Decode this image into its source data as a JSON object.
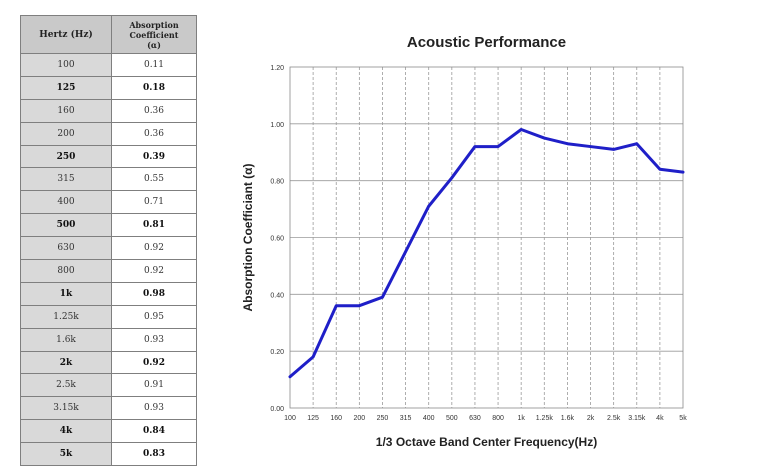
{
  "table": {
    "header_hz": "Hertz (Hz)",
    "header_ac_line1": "Absorption",
    "header_ac_line2": "Coefficient",
    "header_ac_line3": "(α)",
    "rows": [
      {
        "hz": "100",
        "ac": "0.11",
        "bold": false
      },
      {
        "hz": "125",
        "ac": "0.18",
        "bold": true
      },
      {
        "hz": "160",
        "ac": "0.36",
        "bold": false
      },
      {
        "hz": "200",
        "ac": "0.36",
        "bold": false
      },
      {
        "hz": "250",
        "ac": "0.39",
        "bold": true
      },
      {
        "hz": "315",
        "ac": "0.55",
        "bold": false
      },
      {
        "hz": "400",
        "ac": "0.71",
        "bold": false
      },
      {
        "hz": "500",
        "ac": "0.81",
        "bold": true
      },
      {
        "hz": "630",
        "ac": "0.92",
        "bold": false
      },
      {
        "hz": "800",
        "ac": "0.92",
        "bold": false
      },
      {
        "hz": "1k",
        "ac": "0.98",
        "bold": true
      },
      {
        "hz": "1.25k",
        "ac": "0.95",
        "bold": false
      },
      {
        "hz": "1.6k",
        "ac": "0.93",
        "bold": false
      },
      {
        "hz": "2k",
        "ac": "0.92",
        "bold": true
      },
      {
        "hz": "2.5k",
        "ac": "0.91",
        "bold": false
      },
      {
        "hz": "3.15k",
        "ac": "0.93",
        "bold": false
      },
      {
        "hz": "4k",
        "ac": "0.84",
        "bold": true
      },
      {
        "hz": "5k",
        "ac": "0.83",
        "bold": true
      }
    ]
  },
  "chart_data": {
    "type": "line",
    "title": "Acoustic Performance",
    "xlabel": "1/3 Octave Band Center Frequency(Hz)",
    "ylabel": "Absorption Coefficiant (α)",
    "categories": [
      "100",
      "125",
      "160",
      "200",
      "250",
      "315",
      "400",
      "500",
      "630",
      "800",
      "1k",
      "1.25k",
      "1.6k",
      "2k",
      "2.5k",
      "3.15k",
      "4k",
      "5k"
    ],
    "values": [
      0.11,
      0.18,
      0.36,
      0.36,
      0.39,
      0.55,
      0.71,
      0.81,
      0.92,
      0.92,
      0.98,
      0.95,
      0.93,
      0.92,
      0.91,
      0.93,
      0.84,
      0.83
    ],
    "ylim": [
      0,
      1.2
    ],
    "yticks": [
      "0.00",
      "0.20",
      "0.40",
      "0.60",
      "0.80",
      "1.00",
      "1.20"
    ],
    "grid": true,
    "line_color": "#1f1fc8",
    "grid_color": "#9a9a9a"
  }
}
